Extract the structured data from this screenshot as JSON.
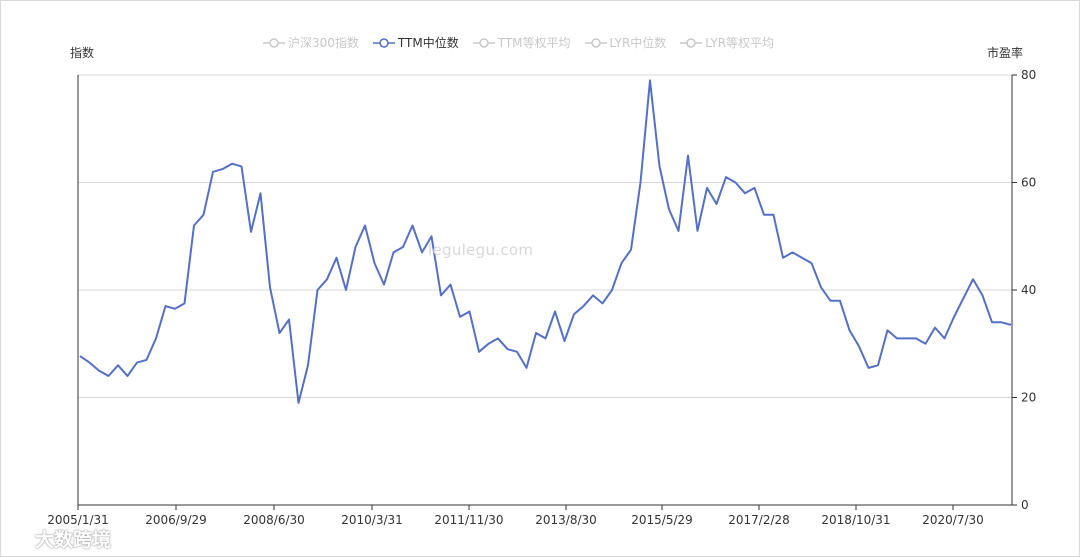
{
  "legend": [
    {
      "label": "沪深300指数",
      "active": false
    },
    {
      "label": "TTM中位数",
      "active": true
    },
    {
      "label": "TTM等权平均",
      "active": false
    },
    {
      "label": "LYR中位数",
      "active": false
    },
    {
      "label": "LYR等权平均",
      "active": false
    }
  ],
  "left_axis_title": "指数",
  "right_axis_title": "市盈率",
  "watermark": "legulegu.com",
  "logo_text": "大数跨境",
  "colors": {
    "series": "#5470c6",
    "legend_inactive": "#c8c8c8",
    "grid": "#d9d9d9",
    "axis": "#333333"
  },
  "chart_data": {
    "type": "line",
    "x_tick_labels": [
      "2005/1/31",
      "2006/9/29",
      "2008/6/30",
      "2010/3/31",
      "2011/11/30",
      "2013/8/30",
      "2015/5/29",
      "2017/2/28",
      "2018/10/31",
      "2020/7/30"
    ],
    "y_right": {
      "label": "市盈率",
      "ylim": [
        0,
        80
      ],
      "ticks": [
        0,
        20,
        40,
        60,
        80
      ]
    },
    "grid": true,
    "legend_position": "top-center",
    "series": [
      {
        "name": "TTM中位数",
        "x": [
          "2005-01",
          "2005-03",
          "2005-05",
          "2005-07",
          "2005-09",
          "2005-11",
          "2006-01",
          "2006-03",
          "2006-05",
          "2006-07",
          "2006-09",
          "2006-11",
          "2007-01",
          "2007-03",
          "2007-05",
          "2007-07",
          "2007-09",
          "2007-11",
          "2008-01",
          "2008-03",
          "2008-05",
          "2008-07",
          "2008-09",
          "2008-11",
          "2009-01",
          "2009-03",
          "2009-05",
          "2009-07",
          "2009-09",
          "2009-11",
          "2010-01",
          "2010-03",
          "2010-05",
          "2010-07",
          "2010-09",
          "2010-11",
          "2011-01",
          "2011-03",
          "2011-05",
          "2011-07",
          "2011-09",
          "2011-11",
          "2012-01",
          "2012-03",
          "2012-05",
          "2012-07",
          "2012-09",
          "2012-11",
          "2013-01",
          "2013-03",
          "2013-05",
          "2013-07",
          "2013-09",
          "2013-11",
          "2014-01",
          "2014-03",
          "2014-05",
          "2014-07",
          "2014-09",
          "2014-11",
          "2015-01",
          "2015-03",
          "2015-05",
          "2015-07",
          "2015-09",
          "2015-11",
          "2016-01",
          "2016-03",
          "2016-05",
          "2016-07",
          "2016-09",
          "2016-11",
          "2017-01",
          "2017-03",
          "2017-05",
          "2017-07",
          "2017-09",
          "2017-11",
          "2018-01",
          "2018-03",
          "2018-05",
          "2018-07",
          "2018-09",
          "2018-11",
          "2019-01",
          "2019-03",
          "2019-05",
          "2019-07",
          "2019-09",
          "2019-11",
          "2020-01",
          "2020-03",
          "2020-05",
          "2020-07",
          "2020-09",
          "2020-11",
          "2021-01",
          "2021-03",
          "2021-05"
        ],
        "values": [
          27.7,
          26.5,
          25,
          24,
          26,
          24,
          26.5,
          27,
          31,
          37,
          36.5,
          37.5,
          52,
          54,
          62,
          62.5,
          63.5,
          63,
          50.8,
          58,
          40.5,
          32,
          34.5,
          19,
          26,
          40,
          42,
          46,
          40,
          48,
          52,
          45,
          41,
          47,
          48,
          52,
          47,
          50,
          39,
          41,
          35,
          36,
          28.5,
          30,
          31,
          29,
          28.5,
          25.5,
          32,
          31,
          36,
          30.5,
          35.5,
          37,
          39,
          37.5,
          40,
          45,
          47.5,
          60,
          79,
          63,
          55,
          51,
          65,
          51,
          59,
          56,
          61,
          60,
          58,
          59,
          54,
          54,
          46,
          47,
          46,
          45,
          40.5,
          38,
          38,
          32.5,
          29.5,
          25.5,
          26,
          32.5,
          31,
          31,
          31,
          30,
          33,
          31,
          35,
          38.5,
          42,
          39,
          34,
          34,
          33.5
        ]
      }
    ]
  }
}
